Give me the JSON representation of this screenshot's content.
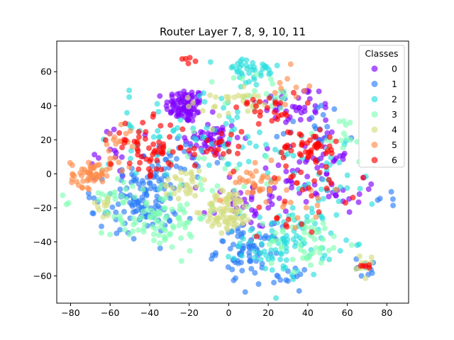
{
  "chart_data": {
    "type": "scatter",
    "title": "Router Layer 7, 8, 9, 10, 11",
    "xlabel": "",
    "ylabel": "",
    "xlim": [
      -87,
      91
    ],
    "ylim": [
      -76,
      78
    ],
    "xticks": [
      -80,
      -60,
      -40,
      -20,
      0,
      20,
      40,
      60,
      80
    ],
    "yticks": [
      -60,
      -40,
      -20,
      0,
      20,
      40,
      60
    ],
    "grid": false,
    "legend": {
      "title": "Classes",
      "placement": "top-right"
    },
    "point_alpha": 0.65,
    "series": [
      {
        "name": "0",
        "color": "#8000ff",
        "clusters": [
          {
            "cx": -22,
            "cy": 40,
            "sx": 5,
            "sy": 5,
            "n": 90
          },
          {
            "cx": -10,
            "cy": 20,
            "sx": 8,
            "sy": 6,
            "n": 55
          },
          {
            "cx": 35,
            "cy": 40,
            "sx": 10,
            "sy": 6,
            "n": 40
          },
          {
            "cx": 30,
            "cy": -10,
            "sx": 12,
            "sy": 8,
            "n": 35
          },
          {
            "cx": 45,
            "cy": 10,
            "sx": 8,
            "sy": 6,
            "n": 25
          },
          {
            "cx": 5,
            "cy": -20,
            "sx": 10,
            "sy": 10,
            "n": 30
          },
          {
            "cx": 65,
            "cy": -10,
            "sx": 6,
            "sy": 8,
            "n": 15
          },
          {
            "cx": -60,
            "cy": 10,
            "sx": 8,
            "sy": 8,
            "n": 15
          }
        ]
      },
      {
        "name": "1",
        "color": "#2c7ef7",
        "clusters": [
          {
            "cx": -42,
            "cy": -15,
            "sx": 8,
            "sy": 10,
            "n": 110
          },
          {
            "cx": 10,
            "cy": -45,
            "sx": 8,
            "sy": 7,
            "n": 70
          },
          {
            "cx": -25,
            "cy": 5,
            "sx": 10,
            "sy": 8,
            "n": 25
          },
          {
            "cx": 45,
            "cy": 30,
            "sx": 10,
            "sy": 8,
            "n": 20
          },
          {
            "cx": 70,
            "cy": -55,
            "sx": 3,
            "sy": 3,
            "n": 10
          },
          {
            "cx": -60,
            "cy": -20,
            "sx": 8,
            "sy": 8,
            "n": 20
          },
          {
            "cx": 25,
            "cy": -60,
            "sx": 8,
            "sy": 5,
            "n": 15
          },
          {
            "cx": 80,
            "cy": -15,
            "sx": 3,
            "sy": 3,
            "n": 5
          }
        ]
      },
      {
        "name": "2",
        "color": "#2adddd",
        "clusters": [
          {
            "cx": 30,
            "cy": -40,
            "sx": 12,
            "sy": 10,
            "n": 95
          },
          {
            "cx": 10,
            "cy": 60,
            "sx": 8,
            "sy": 5,
            "n": 40
          },
          {
            "cx": -5,
            "cy": 25,
            "sx": 15,
            "sy": 12,
            "n": 35
          },
          {
            "cx": -40,
            "cy": 25,
            "sx": 10,
            "sy": 10,
            "n": 25
          },
          {
            "cx": 50,
            "cy": -10,
            "sx": 10,
            "sy": 12,
            "n": 25
          },
          {
            "cx": 25,
            "cy": 10,
            "sx": 12,
            "sy": 10,
            "n": 20
          }
        ]
      },
      {
        "name": "3",
        "color": "#80ffb4",
        "clusters": [
          {
            "cx": -35,
            "cy": -25,
            "sx": 12,
            "sy": 10,
            "n": 90
          },
          {
            "cx": 40,
            "cy": -40,
            "sx": 10,
            "sy": 8,
            "n": 50
          },
          {
            "cx": -60,
            "cy": -15,
            "sx": 8,
            "sy": 10,
            "n": 25
          },
          {
            "cx": 15,
            "cy": 45,
            "sx": 10,
            "sy": 8,
            "n": 20
          },
          {
            "cx": 0,
            "cy": 0,
            "sx": 15,
            "sy": 12,
            "n": 20
          },
          {
            "cx": 55,
            "cy": 20,
            "sx": 10,
            "sy": 8,
            "n": 15
          }
        ]
      },
      {
        "name": "4",
        "color": "#d4dd80",
        "clusters": [
          {
            "cx": 0,
            "cy": -22,
            "sx": 6,
            "sy": 6,
            "n": 85
          },
          {
            "cx": -22,
            "cy": -5,
            "sx": 6,
            "sy": 5,
            "n": 30
          },
          {
            "cx": 10,
            "cy": 45,
            "sx": 5,
            "sy": 4,
            "n": 20
          },
          {
            "cx": 68,
            "cy": -55,
            "sx": 3,
            "sy": 3,
            "n": 10
          },
          {
            "cx": -65,
            "cy": -18,
            "sx": 4,
            "sy": 4,
            "n": 10
          },
          {
            "cx": -10,
            "cy": 40,
            "sx": 6,
            "sy": 6,
            "n": 10
          }
        ]
      },
      {
        "name": "5",
        "color": "#ff8c4a",
        "clusters": [
          {
            "cx": -70,
            "cy": 0,
            "sx": 5,
            "sy": 4,
            "n": 55
          },
          {
            "cx": 15,
            "cy": -5,
            "sx": 6,
            "sy": 5,
            "n": 35
          },
          {
            "cx": -55,
            "cy": 20,
            "sx": 6,
            "sy": 6,
            "n": 20
          },
          {
            "cx": 35,
            "cy": -20,
            "sx": 10,
            "sy": 8,
            "n": 15
          },
          {
            "cx": 30,
            "cy": 50,
            "sx": 6,
            "sy": 6,
            "n": 10
          }
        ]
      },
      {
        "name": "6",
        "color": "#ff0000",
        "clusters": [
          {
            "cx": -40,
            "cy": 15,
            "sx": 10,
            "sy": 8,
            "n": 60
          },
          {
            "cx": 40,
            "cy": 15,
            "sx": 8,
            "sy": 6,
            "n": 45
          },
          {
            "cx": 20,
            "cy": 40,
            "sx": 8,
            "sy": 6,
            "n": 25
          },
          {
            "cx": -5,
            "cy": 15,
            "sx": 8,
            "sy": 6,
            "n": 20
          },
          {
            "cx": 45,
            "cy": -5,
            "sx": 10,
            "sy": 8,
            "n": 20
          },
          {
            "cx": -20,
            "cy": 67,
            "sx": 2,
            "sy": 1,
            "n": 5
          },
          {
            "cx": 70,
            "cy": -52,
            "sx": 2,
            "sy": 2,
            "n": 5
          },
          {
            "cx": 30,
            "cy": -25,
            "sx": 8,
            "sy": 8,
            "n": 10
          }
        ]
      }
    ]
  }
}
